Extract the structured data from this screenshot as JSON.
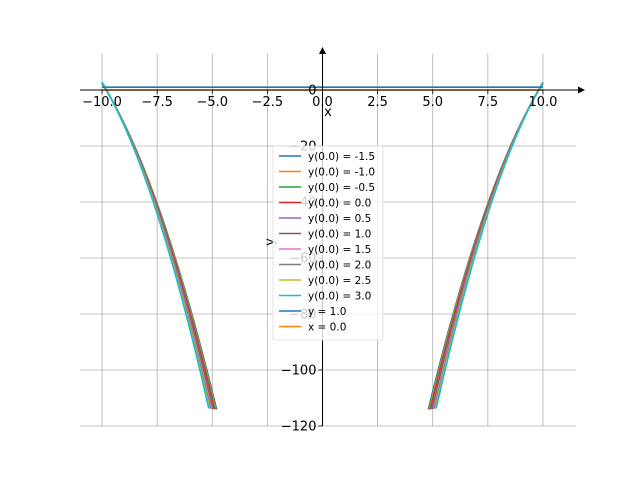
{
  "chart_data": {
    "type": "line",
    "xlabel": "x",
    "ylabel": "y",
    "xlim": [
      -11.0,
      11.5
    ],
    "ylim": [
      -120,
      15
    ],
    "grid": true,
    "legend_placement": "center",
    "x_ticks": [
      -10.0,
      -7.5,
      -5.0,
      -2.5,
      0.0,
      2.5,
      5.0,
      7.5,
      10.0
    ],
    "x_tick_labels": [
      "−10.0",
      "−7.5",
      "−5.0",
      "−2.5",
      "0.0",
      "2.5",
      "5.0",
      "7.5",
      "10.0"
    ],
    "y_ticks": [
      0,
      -20,
      -40,
      -60,
      -80,
      -100,
      -120
    ],
    "y_tick_labels": [
      "0",
      "−20",
      "−40",
      "−60",
      "−80",
      "−100",
      "−120"
    ],
    "series": [
      {
        "name": "y(0.0) = -1.5",
        "color": "#1f77b4",
        "y0": -1.5
      },
      {
        "name": "y(0.0) = -1.0",
        "color": "#ff7f0e",
        "y0": -1.0
      },
      {
        "name": "y(0.0) = -0.5",
        "color": "#2ca02c",
        "y0": -0.5
      },
      {
        "name": "y(0.0) = 0.0",
        "color": "#d62728",
        "y0": 0.0
      },
      {
        "name": "y(0.0) = 0.5",
        "color": "#9467bd",
        "y0": 0.5
      },
      {
        "name": "y(0.0) = 1.0",
        "color": "#8c564b",
        "y0": 1.0
      },
      {
        "name": "y(0.0) = 1.5",
        "color": "#e377c2",
        "y0": 1.5
      },
      {
        "name": "y(0.0) = 2.0",
        "color": "#7f7f7f",
        "y0": 2.0
      },
      {
        "name": "y(0.0) = 2.5",
        "color": "#bcbd22",
        "y0": 2.5
      },
      {
        "name": "y(0.0) = 3.0",
        "color": "#17becf",
        "y0": 3.0
      }
    ],
    "reference_lines": [
      {
        "name": "y = 1.0",
        "color": "#1f77b4",
        "orientation": "horizontal",
        "value": 1.0
      },
      {
        "name": "x = 0.0",
        "color": "#ff7f0e",
        "orientation": "horizontal",
        "value": 0.0
      }
    ]
  }
}
